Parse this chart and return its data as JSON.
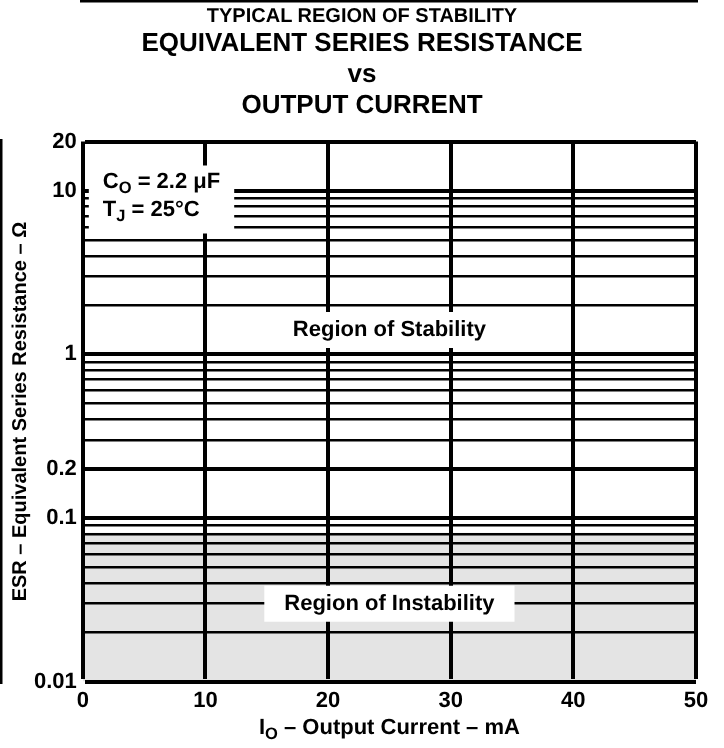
{
  "chart_data": {
    "type": "area",
    "title": "TYPICAL REGION OF STABILITY",
    "subtitle": "EQUIVALENT SERIES RESISTANCE\nvs\nOUTPUT CURRENT",
    "xlabel": "I$_{O}$ – Output Current – mA",
    "ylabel": "ESR – Equivalent Series Resistance – Ω",
    "log": "y",
    "x": [
      0,
      50
    ],
    "series": [
      {
        "color": "#e4e4e4",
        "values": [
          0.08,
          0.08
        ]
      }
    ],
    "xlim": [
      0,
      50
    ],
    "xticks": [
      0,
      10,
      20,
      30,
      40,
      50
    ],
    "ylim": [
      0.01,
      20
    ],
    "yticks": [
      0.01,
      {
        "value": 0.02,
        "label": null
      },
      {
        "value": 0.03,
        "label": null
      },
      {
        "value": 0.04,
        "label": null
      },
      {
        "value": 0.05,
        "label": null
      },
      {
        "value": 0.06,
        "label": null
      },
      {
        "value": 0.07,
        "label": null
      },
      {
        "value": 0.08,
        "label": null
      },
      {
        "value": 0.09,
        "label": null
      },
      0.1,
      0.2,
      {
        "value": 0.3,
        "label": null
      },
      {
        "value": 0.4,
        "label": null
      },
      {
        "value": 0.5,
        "label": null
      },
      {
        "value": 0.6,
        "label": null
      },
      {
        "value": 0.7,
        "label": null
      },
      {
        "value": 0.8,
        "label": null
      },
      {
        "value": 0.9,
        "label": null
      },
      1,
      {
        "value": 2,
        "label": null
      },
      {
        "value": 3,
        "label": null
      },
      {
        "value": 4,
        "label": null
      },
      {
        "value": 5,
        "label": null
      },
      {
        "value": 6,
        "label": null
      },
      {
        "value": 7,
        "label": null
      },
      {
        "value": 8,
        "label": null
      },
      {
        "value": 9,
        "label": null
      },
      10,
      20
    ],
    "grid": true,
    "annotations": [
      "C$_{O}$ = 2.2 μF",
      "T$_{J}$ = 25°C",
      "Region of Stability",
      "Region of Instability"
    ]
  }
}
